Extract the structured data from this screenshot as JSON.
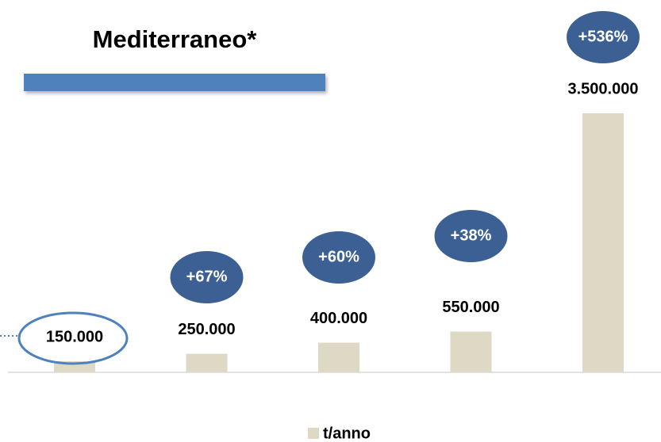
{
  "chart_data": {
    "type": "bar",
    "title": "Mediterraneo*",
    "categories": [
      null,
      null,
      null,
      null,
      null
    ],
    "values": [
      150000,
      250000,
      400000,
      550000,
      3500000
    ],
    "value_labels": [
      "150.000",
      "250.000",
      "400.000",
      "550.000",
      "3.500.000"
    ],
    "color": "#ddd9c4",
    "ylim": [
      0,
      3500000
    ],
    "annotations": [
      "+67%",
      "+60%",
      "+38%",
      "+536%"
    ],
    "legend": {
      "name": "t/anno",
      "position": "bottom"
    }
  }
}
